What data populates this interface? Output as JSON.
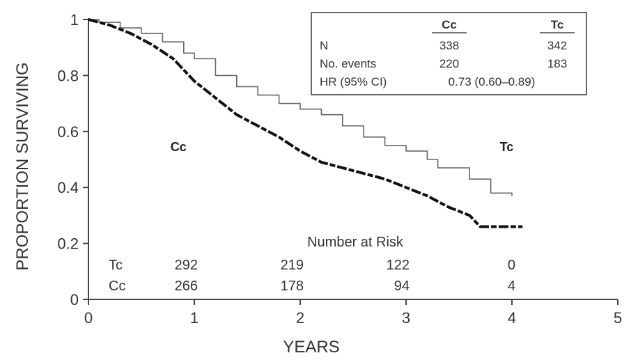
{
  "chart_data": {
    "type": "line",
    "xlabel": "YEARS",
    "ylabel": "PROPORTION SURVIVING",
    "xlim": [
      0,
      5
    ],
    "ylim": [
      0,
      1
    ],
    "x_ticks": [
      "0",
      "1",
      "2",
      "3",
      "4",
      "5"
    ],
    "y_ticks": [
      "0",
      "0.2",
      "0.4",
      "0.6",
      "0.8",
      "1"
    ],
    "grid": false,
    "series": [
      {
        "name": "Tc",
        "color": "#666666",
        "style": "solid-step",
        "x": [
          0,
          0.1,
          0.3,
          0.5,
          0.7,
          0.9,
          1.0,
          1.2,
          1.4,
          1.6,
          1.8,
          2.0,
          2.2,
          2.4,
          2.6,
          2.8,
          3.0,
          3.2,
          3.3,
          3.6,
          3.8,
          3.8,
          4.0
        ],
        "y": [
          1.0,
          0.99,
          0.97,
          0.95,
          0.92,
          0.88,
          0.86,
          0.8,
          0.76,
          0.73,
          0.7,
          0.68,
          0.66,
          0.62,
          0.58,
          0.55,
          0.53,
          0.5,
          0.47,
          0.43,
          0.43,
          0.38,
          0.37
        ]
      },
      {
        "name": "Cc",
        "color": "#111111",
        "style": "bold-dashed",
        "x": [
          0,
          0.1,
          0.2,
          0.4,
          0.6,
          0.8,
          1.0,
          1.2,
          1.4,
          1.6,
          1.8,
          2.0,
          2.2,
          2.4,
          2.6,
          2.8,
          3.0,
          3.2,
          3.4,
          3.6,
          3.7,
          4.1
        ],
        "y": [
          1.0,
          0.99,
          0.98,
          0.95,
          0.91,
          0.86,
          0.78,
          0.72,
          0.66,
          0.62,
          0.58,
          0.53,
          0.49,
          0.47,
          0.45,
          0.43,
          0.4,
          0.37,
          0.33,
          0.3,
          0.26,
          0.26
        ]
      }
    ],
    "curve_labels": [
      {
        "text": "Cc",
        "x": 0.85,
        "y": 0.53
      },
      {
        "text": "Tc",
        "x": 3.95,
        "y": 0.53
      }
    ],
    "stats_box": {
      "headers": [
        "",
        "Cc",
        "Tc"
      ],
      "rows": [
        {
          "label": "N",
          "cc": "338",
          "tc": "342"
        },
        {
          "label": "No. events",
          "cc": "220",
          "tc": "183"
        },
        {
          "label": "HR (95% CI)",
          "value": "0.73 (0.60–0.89)"
        }
      ]
    },
    "risk_table": {
      "title": "Number at Risk",
      "rows": [
        {
          "label": "Tc",
          "values": [
            "292",
            "219",
            "122",
            "0"
          ]
        },
        {
          "label": "Cc",
          "values": [
            "266",
            "178",
            "94",
            "4"
          ]
        }
      ],
      "at_years": [
        1,
        2,
        3,
        4
      ]
    }
  }
}
